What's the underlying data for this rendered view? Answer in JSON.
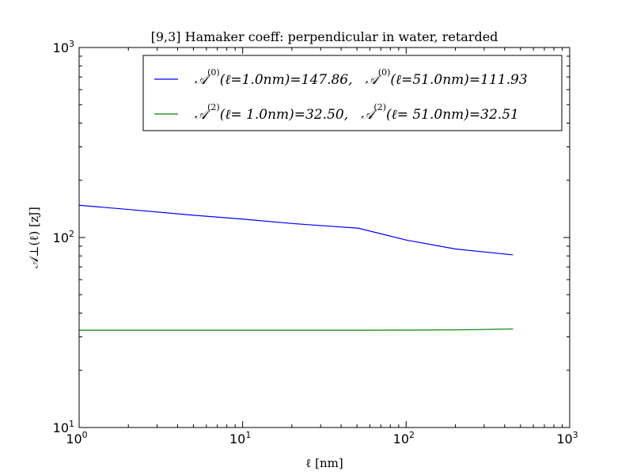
{
  "chart_data": {
    "type": "line",
    "title": "[9,3]  Hamaker coeff: perpendicular in water, retarded",
    "xlabel": "ℓ   [nm]",
    "ylabel": "𝒜⊥(ℓ)   [zJ]",
    "xscale": "log",
    "yscale": "log",
    "xlim": [
      1,
      1000
    ],
    "ylim": [
      10,
      1000
    ],
    "grid": false,
    "legend_position": "top-right",
    "xticks": [
      {
        "base": "10",
        "exp": "0"
      },
      {
        "base": "10",
        "exp": "1"
      },
      {
        "base": "10",
        "exp": "2"
      },
      {
        "base": "10",
        "exp": "3"
      }
    ],
    "yticks": [
      {
        "base": "10",
        "exp": "1"
      },
      {
        "base": "10",
        "exp": "2"
      },
      {
        "base": "10",
        "exp": "3"
      }
    ],
    "series": [
      {
        "name": "𝒜(0)(ℓ=1.0nm)=147.86,   𝒜(0)(ℓ=51.0nm)=111.93",
        "color": "#0000ff",
        "legend": {
          "a1": "𝒜",
          "sup1": "(0)",
          "mid1": "(ℓ=1.0nm)=147.86,",
          "a2": "𝒜",
          "sup2": "(0)",
          "mid2": "(ℓ=51.0nm)=111.93"
        },
        "x": [
          1,
          2,
          5,
          10,
          20,
          51,
          100,
          200,
          450
        ],
        "y": [
          147.86,
          140.5,
          131,
          125,
          118.5,
          111.93,
          97,
          87,
          81
        ]
      },
      {
        "name": "𝒜(2)(ℓ= 1.0nm)=32.50,   𝒜(2)(ℓ= 51.0nm)=32.51",
        "color": "#008000",
        "legend": {
          "a1": "𝒜",
          "sup1": "(2)",
          "mid1": "(ℓ= 1.0nm)=32.50,",
          "a2": "𝒜",
          "sup2": "(2)",
          "mid2": "(ℓ= 51.0nm)=32.51"
        },
        "x": [
          1,
          10,
          51,
          100,
          200,
          300,
          450
        ],
        "y": [
          32.5,
          32.5,
          32.51,
          32.55,
          32.65,
          32.8,
          33.0
        ]
      }
    ]
  }
}
